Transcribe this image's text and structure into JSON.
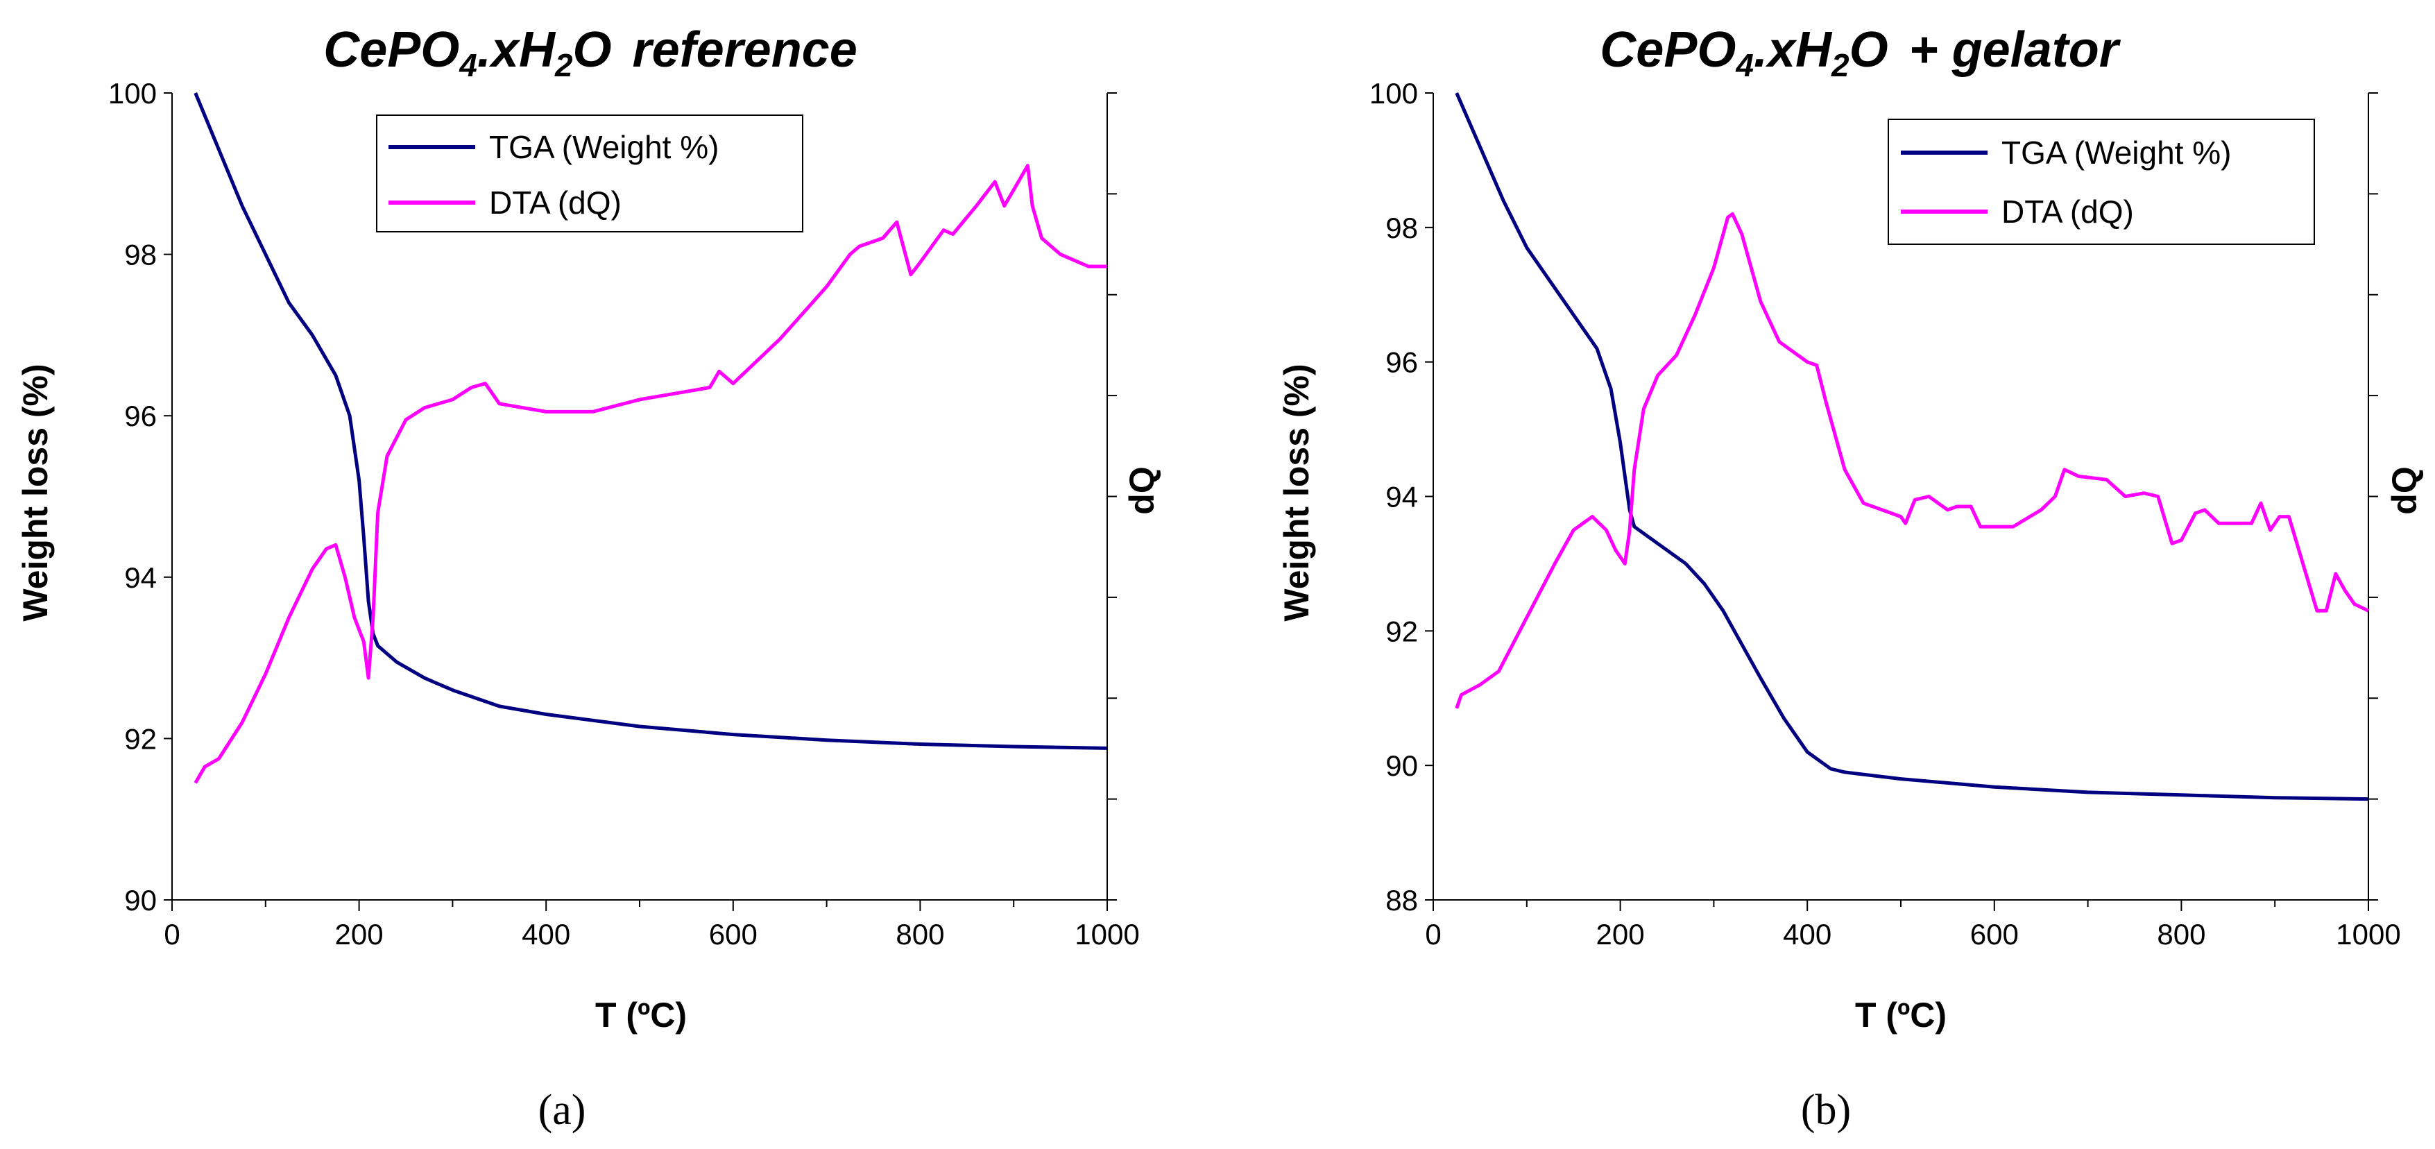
{
  "figure": {
    "panels": [
      {
        "id": "a",
        "label": "(a)",
        "title_parts": {
          "ce": "CePO",
          "sub1": "4",
          "mid": ".xH",
          "sub2": "2",
          "o": "O",
          "suffix": "reference"
        },
        "colors": {
          "tga": "#000080",
          "dta": "#ff00ff"
        }
      },
      {
        "id": "b",
        "label": "(b)",
        "title_parts": {
          "ce": "CePO",
          "sub1": "4",
          "mid": ".xH",
          "sub2": "2",
          "o": "O",
          "suffix": "+ gelator"
        },
        "colors": {
          "tga": "#000080",
          "dta": "#ff00ff"
        }
      }
    ]
  },
  "chart_data": [
    {
      "type": "line",
      "title": "CePO4.xH2O reference",
      "xlabel": "T (ºC)",
      "ylabel": "Weight loss (%)",
      "y2label": "dQ",
      "xlim": [
        0,
        1000
      ],
      "ylim": [
        90,
        100
      ],
      "xticks": [
        "0",
        "200",
        "400",
        "600",
        "800",
        "1000"
      ],
      "yticks": [
        "90",
        "92",
        "94",
        "96",
        "98",
        "100"
      ],
      "legend": [
        "TGA (Weight %)",
        "DTA (dQ)"
      ],
      "legend_position": "top-center",
      "series": [
        {
          "name": "TGA (Weight %)",
          "axis": "left",
          "x": [
            25,
            50,
            75,
            100,
            125,
            150,
            175,
            190,
            200,
            205,
            210,
            215,
            220,
            240,
            270,
            300,
            350,
            400,
            500,
            600,
            700,
            800,
            900,
            1000
          ],
          "y": [
            100,
            99.3,
            98.6,
            98.0,
            97.4,
            97.0,
            96.5,
            96.0,
            95.2,
            94.5,
            93.7,
            93.3,
            93.15,
            92.95,
            92.75,
            92.6,
            92.4,
            92.3,
            92.15,
            92.05,
            91.98,
            91.93,
            91.9,
            91.88
          ]
        },
        {
          "name": "DTA (dQ)",
          "axis": "right",
          "x": [
            25,
            35,
            50,
            75,
            100,
            125,
            150,
            165,
            175,
            185,
            195,
            205,
            210,
            215,
            220,
            230,
            250,
            270,
            300,
            320,
            335,
            350,
            400,
            450,
            500,
            550,
            575,
            585,
            600,
            650,
            700,
            725,
            735,
            760,
            775,
            790,
            800,
            825,
            835,
            860,
            880,
            890,
            900,
            915,
            920,
            930,
            950,
            980,
            1000
          ],
          "y": [
            91.45,
            91.65,
            91.75,
            92.2,
            92.8,
            93.5,
            94.1,
            94.35,
            94.4,
            94.0,
            93.5,
            93.2,
            92.75,
            93.5,
            94.8,
            95.5,
            95.95,
            96.1,
            96.2,
            96.35,
            96.4,
            96.15,
            96.05,
            96.05,
            96.2,
            96.3,
            96.35,
            96.55,
            96.4,
            96.95,
            97.6,
            98.0,
            98.1,
            98.2,
            98.4,
            97.75,
            97.9,
            98.3,
            98.25,
            98.6,
            98.9,
            98.6,
            98.8,
            99.1,
            98.6,
            98.2,
            98.0,
            97.85,
            97.85
          ]
        }
      ]
    },
    {
      "type": "line",
      "title": "CePO4.xH2O + gelator",
      "xlabel": "T (ºC)",
      "ylabel": "Weight loss (%)",
      "y2label": "dQ",
      "xlim": [
        0,
        1000
      ],
      "ylim": [
        88,
        100
      ],
      "xticks": [
        "0",
        "200",
        "400",
        "600",
        "800",
        "1000"
      ],
      "yticks": [
        "88",
        "90",
        "92",
        "94",
        "96",
        "98",
        "100"
      ],
      "legend": [
        "TGA (Weight %)",
        "DTA (dQ)"
      ],
      "legend_position": "top-right",
      "series": [
        {
          "name": "TGA (Weight %)",
          "axis": "left",
          "x": [
            25,
            50,
            75,
            100,
            125,
            150,
            175,
            190,
            200,
            205,
            210,
            215,
            230,
            250,
            270,
            290,
            310,
            330,
            350,
            375,
            400,
            425,
            440,
            500,
            600,
            700,
            800,
            900,
            1000
          ],
          "y": [
            100,
            99.2,
            98.4,
            97.7,
            97.2,
            96.7,
            96.2,
            95.6,
            94.8,
            94.3,
            93.8,
            93.55,
            93.4,
            93.2,
            93.0,
            92.7,
            92.3,
            91.8,
            91.3,
            90.7,
            90.2,
            89.95,
            89.9,
            89.8,
            89.68,
            89.6,
            89.56,
            89.52,
            89.5
          ]
        },
        {
          "name": "DTA (dQ)",
          "axis": "right",
          "x": [
            25,
            30,
            50,
            70,
            100,
            130,
            150,
            170,
            185,
            195,
            205,
            210,
            215,
            225,
            240,
            260,
            280,
            300,
            315,
            320,
            330,
            350,
            370,
            400,
            410,
            420,
            440,
            460,
            480,
            500,
            505,
            515,
            530,
            550,
            560,
            575,
            585,
            590,
            620,
            650,
            665,
            675,
            690,
            720,
            740,
            760,
            775,
            790,
            800,
            815,
            825,
            840,
            860,
            875,
            885,
            895,
            905,
            915,
            930,
            945,
            955,
            965,
            975,
            985,
            1000
          ],
          "y": [
            90.85,
            91.05,
            91.2,
            91.4,
            92.2,
            93.0,
            93.5,
            93.7,
            93.5,
            93.2,
            93.0,
            93.5,
            94.4,
            95.3,
            95.8,
            96.1,
            96.7,
            97.4,
            98.15,
            98.2,
            97.9,
            96.9,
            96.3,
            96.0,
            95.95,
            95.4,
            94.4,
            93.9,
            93.8,
            93.7,
            93.6,
            93.95,
            94.0,
            93.8,
            93.85,
            93.85,
            93.55,
            93.55,
            93.55,
            93.8,
            94.0,
            94.4,
            94.3,
            94.25,
            94.0,
            94.05,
            94.0,
            93.3,
            93.35,
            93.75,
            93.8,
            93.6,
            93.6,
            93.6,
            93.9,
            93.5,
            93.7,
            93.7,
            93.0,
            92.3,
            92.3,
            92.85,
            92.6,
            92.4,
            92.3
          ]
        }
      ]
    }
  ]
}
